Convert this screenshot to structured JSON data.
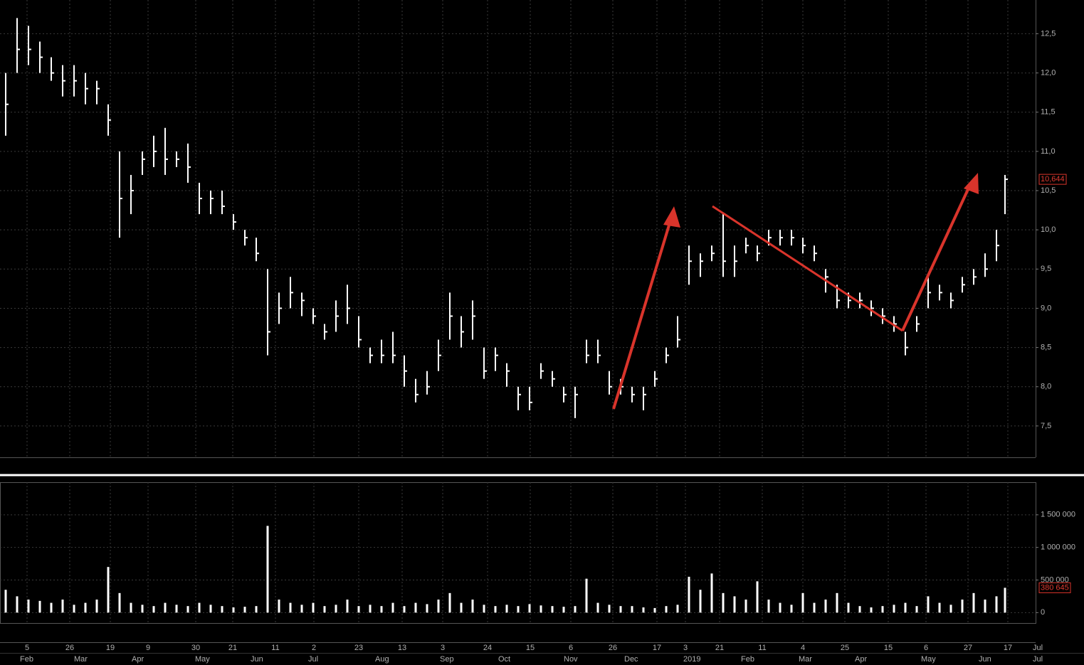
{
  "chart_data": [
    {
      "type": "ohlc",
      "x": [
        2,
        6,
        10,
        14,
        18,
        22,
        26,
        30,
        34,
        38,
        42,
        46,
        50,
        54,
        58,
        62,
        66,
        70,
        74,
        78,
        82,
        86,
        90,
        94,
        98,
        102,
        106,
        110,
        114,
        118,
        122,
        126,
        130,
        134,
        138,
        142,
        146,
        150,
        154,
        158,
        162,
        166,
        170,
        174,
        178,
        182,
        186,
        190,
        194,
        198,
        202,
        206,
        210,
        214,
        218,
        222,
        226,
        230,
        234,
        238,
        242,
        246,
        250,
        254,
        258,
        262,
        266,
        270,
        274,
        278,
        282,
        286,
        290,
        294,
        298,
        302,
        306,
        310,
        314,
        318,
        322,
        326,
        330,
        334,
        338,
        342,
        346,
        350,
        353
      ],
      "high": [
        12.0,
        12.7,
        12.6,
        12.4,
        12.2,
        12.1,
        12.1,
        12.0,
        11.9,
        11.6,
        11.0,
        10.7,
        11.0,
        11.2,
        11.3,
        11.0,
        11.1,
        10.6,
        10.5,
        10.5,
        10.2,
        10.0,
        9.9,
        9.5,
        9.2,
        9.4,
        9.2,
        9.0,
        8.8,
        9.1,
        9.3,
        8.9,
        8.5,
        8.6,
        8.7,
        8.4,
        8.1,
        8.2,
        8.6,
        9.2,
        8.9,
        9.1,
        8.5,
        8.5,
        8.3,
        8.0,
        8.0,
        8.3,
        8.2,
        8.0,
        8.0,
        8.6,
        8.6,
        8.2,
        8.1,
        8.0,
        8.0,
        8.2,
        8.5,
        8.9,
        9.8,
        9.7,
        9.8,
        10.2,
        9.8,
        9.9,
        9.8,
        10.0,
        10.0,
        10.0,
        9.9,
        9.8,
        9.5,
        9.3,
        9.2,
        9.2,
        9.1,
        9.0,
        8.9,
        8.7,
        8.9,
        9.4,
        9.3,
        9.2,
        9.4,
        9.5,
        9.7,
        10.0,
        10.7
      ],
      "low": [
        11.2,
        12.0,
        12.1,
        12.0,
        11.9,
        11.7,
        11.7,
        11.6,
        11.6,
        11.2,
        9.9,
        10.2,
        10.7,
        10.8,
        10.7,
        10.8,
        10.6,
        10.2,
        10.2,
        10.2,
        10.0,
        9.8,
        9.6,
        8.4,
        8.8,
        9.0,
        8.9,
        8.8,
        8.6,
        8.7,
        8.8,
        8.5,
        8.3,
        8.3,
        8.3,
        8.0,
        7.8,
        7.9,
        8.2,
        8.6,
        8.5,
        8.6,
        8.1,
        8.2,
        8.0,
        7.7,
        7.7,
        8.1,
        8.0,
        7.8,
        7.6,
        8.3,
        8.3,
        7.9,
        7.9,
        7.8,
        7.7,
        8.0,
        8.3,
        8.5,
        9.3,
        9.4,
        9.6,
        9.4,
        9.4,
        9.7,
        9.6,
        9.8,
        9.8,
        9.8,
        9.7,
        9.6,
        9.2,
        9.0,
        9.0,
        9.0,
        8.9,
        8.8,
        8.7,
        8.4,
        8.7,
        9.0,
        9.1,
        9.0,
        9.2,
        9.3,
        9.4,
        9.6,
        10.2
      ],
      "close": [
        11.6,
        12.3,
        12.3,
        12.2,
        12.0,
        11.9,
        11.9,
        11.8,
        11.8,
        11.4,
        10.4,
        10.5,
        10.9,
        11.0,
        10.9,
        10.9,
        10.8,
        10.4,
        10.4,
        10.3,
        10.1,
        9.9,
        9.7,
        8.7,
        9.0,
        9.2,
        9.1,
        8.9,
        8.7,
        8.9,
        9.0,
        8.6,
        8.4,
        8.4,
        8.4,
        8.2,
        7.9,
        8.0,
        8.4,
        8.9,
        8.7,
        8.9,
        8.2,
        8.4,
        8.2,
        7.9,
        7.8,
        8.2,
        8.1,
        7.9,
        7.9,
        8.4,
        8.4,
        8.0,
        8.0,
        7.9,
        7.9,
        8.1,
        8.4,
        8.6,
        9.6,
        9.6,
        9.7,
        9.6,
        9.6,
        9.8,
        9.7,
        9.9,
        9.9,
        9.9,
        9.8,
        9.7,
        9.4,
        9.1,
        9.1,
        9.1,
        9.0,
        8.9,
        8.8,
        8.5,
        8.8,
        9.2,
        9.2,
        9.1,
        9.3,
        9.4,
        9.5,
        9.8,
        10.644
      ],
      "color": "#ffffff",
      "last_price": {
        "value": 10.644,
        "label": "10,644"
      },
      "xlim": [
        0,
        363.75
      ],
      "ylim": [
        7.1,
        12.93
      ],
      "yticks": [
        {
          "value": 7.5,
          "label": "7,5"
        },
        {
          "value": 8.0,
          "label": "8,0"
        },
        {
          "value": 8.5,
          "label": "8,5"
        },
        {
          "value": 9.0,
          "label": "9,0"
        },
        {
          "value": 9.5,
          "label": "9,5"
        },
        {
          "value": 10.0,
          "label": "10,0"
        },
        {
          "value": 10.5,
          "label": "10,5"
        },
        {
          "value": 11.0,
          "label": "11,0"
        },
        {
          "value": 11.5,
          "label": "11,5"
        },
        {
          "value": 12.0,
          "label": "12,0"
        },
        {
          "value": 12.5,
          "label": "12,5"
        }
      ],
      "grid": true
    },
    {
      "type": "bar",
      "x": [
        2,
        6,
        10,
        14,
        18,
        22,
        26,
        30,
        34,
        38,
        42,
        46,
        50,
        54,
        58,
        62,
        66,
        70,
        74,
        78,
        82,
        86,
        90,
        94,
        98,
        102,
        106,
        110,
        114,
        118,
        122,
        126,
        130,
        134,
        138,
        142,
        146,
        150,
        154,
        158,
        162,
        166,
        170,
        174,
        178,
        182,
        186,
        190,
        194,
        198,
        202,
        206,
        210,
        214,
        218,
        222,
        226,
        230,
        234,
        238,
        242,
        246,
        250,
        254,
        258,
        262,
        266,
        270,
        274,
        278,
        282,
        286,
        290,
        294,
        298,
        302,
        306,
        310,
        314,
        318,
        322,
        326,
        330,
        334,
        338,
        342,
        346,
        350,
        353
      ],
      "values": [
        350000,
        250000,
        200000,
        180000,
        150000,
        200000,
        120000,
        150000,
        200000,
        700000,
        300000,
        150000,
        120000,
        100000,
        150000,
        120000,
        100000,
        150000,
        120000,
        100000,
        80000,
        90000,
        100000,
        1330000,
        200000,
        150000,
        120000,
        150000,
        100000,
        120000,
        200000,
        100000,
        120000,
        100000,
        150000,
        100000,
        150000,
        130000,
        200000,
        300000,
        150000,
        200000,
        120000,
        100000,
        120000,
        100000,
        130000,
        110000,
        100000,
        90000,
        100000,
        520000,
        150000,
        120000,
        100000,
        100000,
        80000,
        70000,
        100000,
        120000,
        550000,
        350000,
        600000,
        300000,
        250000,
        200000,
        480000,
        200000,
        150000,
        120000,
        300000,
        150000,
        200000,
        300000,
        150000,
        100000,
        80000,
        100000,
        120000,
        150000,
        100000,
        250000,
        150000,
        120000,
        200000,
        300000,
        200000,
        250000,
        380645
      ],
      "color": "#ffffff",
      "last_volume": {
        "value": 380645,
        "label": "380 645"
      },
      "xlim": [
        0,
        363.75
      ],
      "ylim": [
        -160000,
        2000000
      ],
      "yticks": [
        0,
        {
          "value": 500000,
          "label": "500 000"
        },
        {
          "value": 1000000,
          "label": "1 000 000"
        },
        {
          "value": 1500000,
          "label": "1 500 000"
        }
      ],
      "xticks": [
        {
          "value": 9.5,
          "label": "5"
        },
        {
          "value": 24.5,
          "label": "26"
        },
        {
          "value": 38.75,
          "label": "19"
        },
        {
          "value": 52,
          "label": "9"
        },
        {
          "value": 68.75,
          "label": "30"
        },
        {
          "value": 81.75,
          "label": "21"
        },
        {
          "value": 96.75,
          "label": "11"
        },
        {
          "value": 110.25,
          "label": "2"
        },
        {
          "value": 126,
          "label": "23"
        },
        {
          "value": 141.25,
          "label": "13"
        },
        {
          "value": 155.5,
          "label": "3"
        },
        {
          "value": 171.25,
          "label": "24"
        },
        {
          "value": 186.25,
          "label": "15"
        },
        {
          "value": 200.5,
          "label": "6"
        },
        {
          "value": 215.25,
          "label": "26"
        },
        {
          "value": 230.75,
          "label": "17"
        },
        {
          "value": 240.75,
          "label": "3"
        },
        {
          "value": 252.75,
          "label": "21"
        },
        {
          "value": 267.75,
          "label": "11"
        },
        {
          "value": 282,
          "label": "4"
        },
        {
          "value": 296.75,
          "label": "25"
        },
        {
          "value": 312,
          "label": "15"
        },
        {
          "value": 325.25,
          "label": "6"
        },
        {
          "value": 340,
          "label": "27"
        },
        {
          "value": 354,
          "label": "17"
        },
        {
          "value": 364.5,
          "label": "Jul"
        }
      ],
      "month_labels": [
        {
          "value": 7,
          "label": "Feb"
        },
        {
          "value": 26,
          "label": "Mar"
        },
        {
          "value": 46.25,
          "label": "Apr"
        },
        {
          "value": 68.5,
          "label": "May"
        },
        {
          "value": 88,
          "label": "Jun"
        },
        {
          "value": 108.25,
          "label": "Jul"
        },
        {
          "value": 131.75,
          "label": "Aug"
        },
        {
          "value": 154.5,
          "label": "Sep"
        },
        {
          "value": 175,
          "label": "Oct"
        },
        {
          "value": 198,
          "label": "Nov"
        },
        {
          "value": 219.25,
          "label": "Dec"
        },
        {
          "value": 240,
          "label": "2019"
        },
        {
          "value": 260.25,
          "label": "Feb"
        },
        {
          "value": 280.5,
          "label": "Mar"
        },
        {
          "value": 300.25,
          "label": "Apr"
        },
        {
          "value": 323.5,
          "label": "May"
        },
        {
          "value": 343.75,
          "label": "Jun"
        },
        {
          "value": 362.75,
          "label": "Jul"
        }
      ],
      "grid": true
    }
  ]
}
